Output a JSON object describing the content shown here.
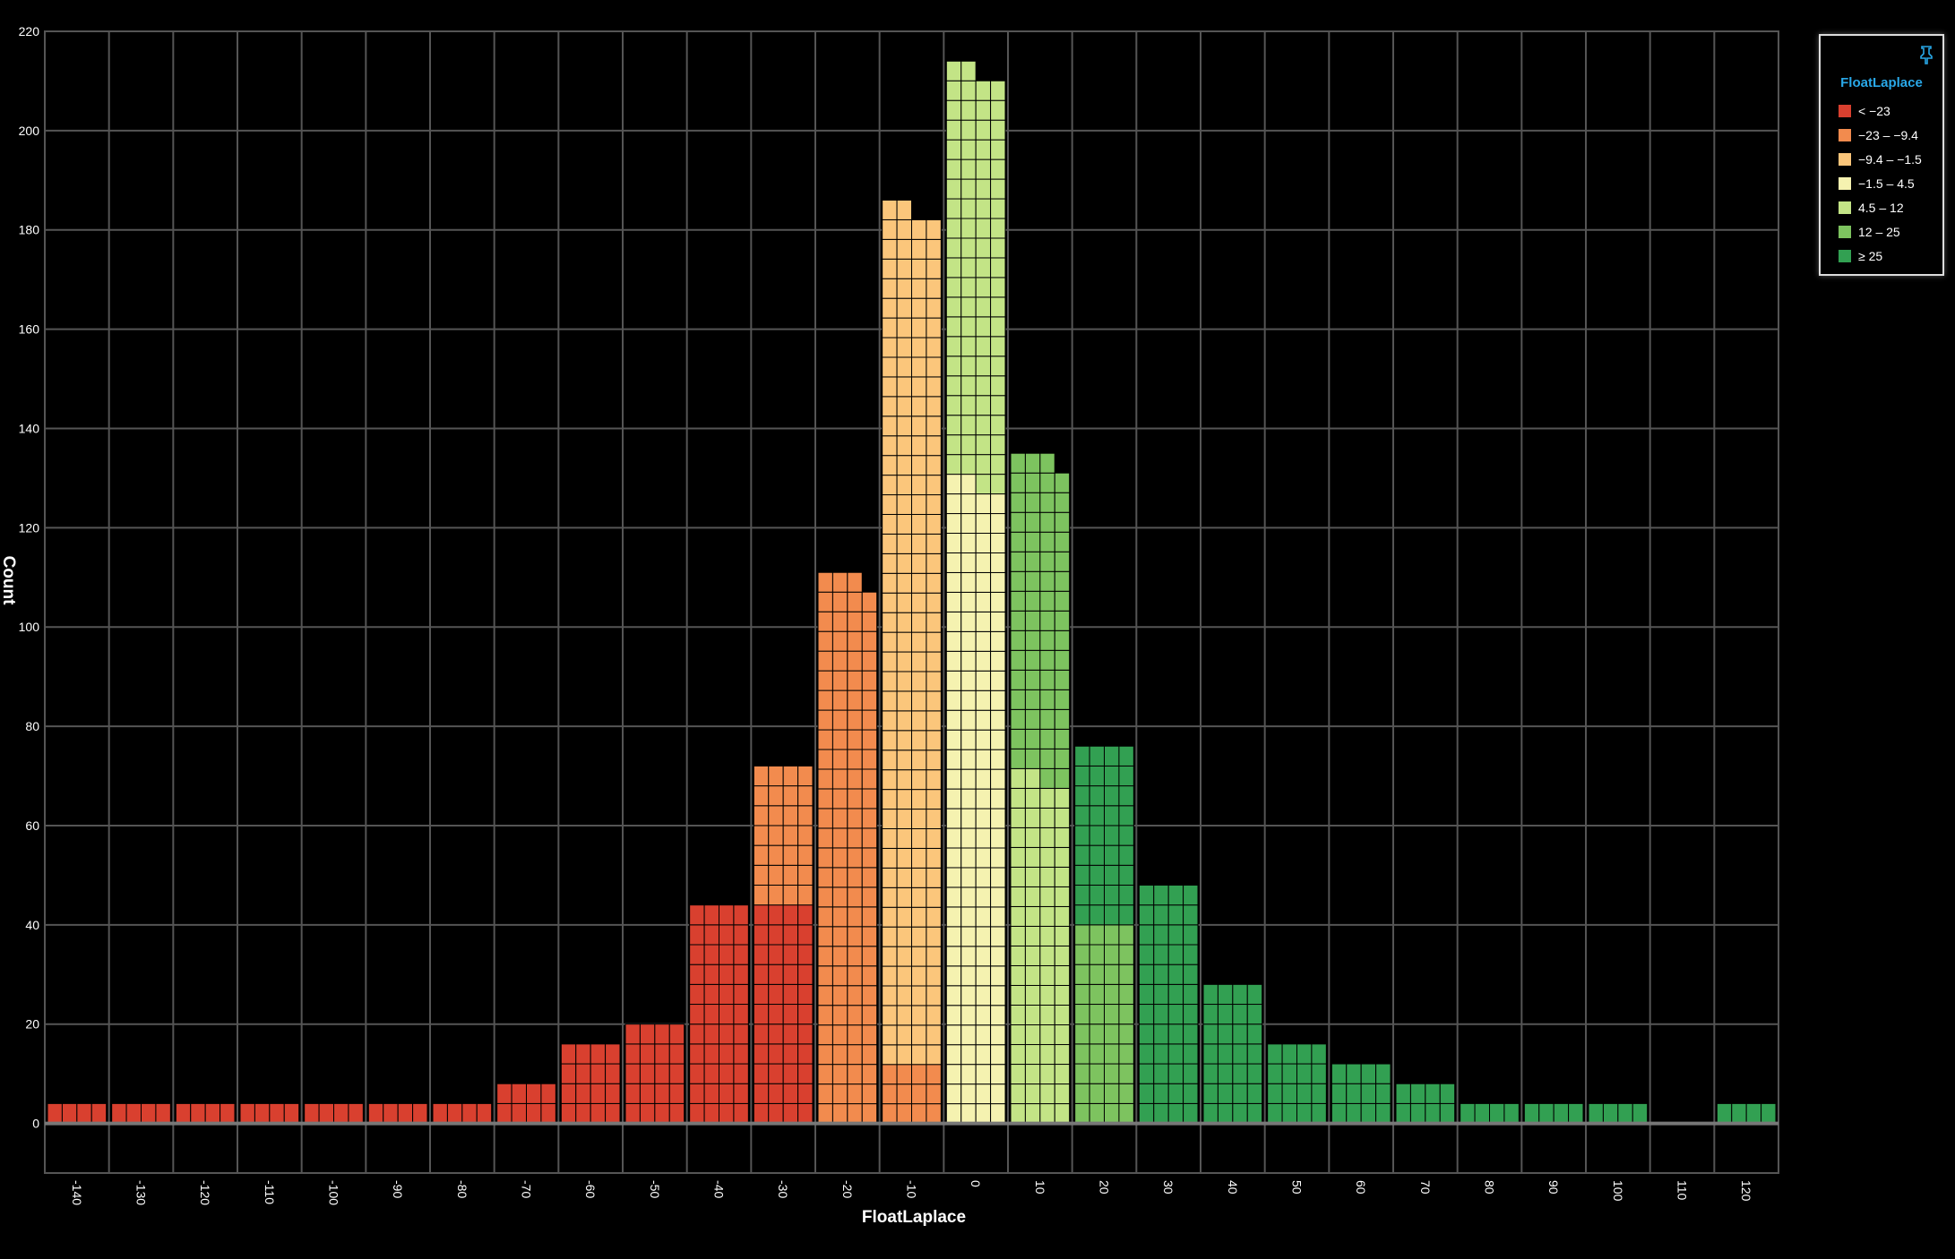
{
  "chart_data": {
    "type": "bar",
    "subtype": "unit-stacked histogram",
    "xlabel": "FloatLaplace",
    "ylabel": "Count",
    "ylim": [
      -10,
      220
    ],
    "y_ticks": [
      0,
      20,
      40,
      60,
      80,
      100,
      120,
      140,
      160,
      180,
      200,
      220
    ],
    "x_ticks": [
      -140,
      -130,
      -120,
      -110,
      -100,
      -90,
      -80,
      -70,
      -60,
      -50,
      -40,
      -30,
      -20,
      -10,
      0,
      10,
      20,
      30,
      40,
      50,
      60,
      70,
      80,
      90,
      100,
      110,
      120
    ],
    "bin_width": 10,
    "grid": true,
    "legend_position": "top-right",
    "legend_title": "FloatLaplace",
    "legend": [
      {
        "label": "< −23",
        "color": "#d9402f"
      },
      {
        "label": "−23 – −9.4",
        "color": "#f28b4e"
      },
      {
        "label": "−9.4 – −1.5",
        "color": "#fbc67b"
      },
      {
        "label": "−1.5 – 4.5",
        "color": "#f5f2b0"
      },
      {
        "label": "4.5 – 12",
        "color": "#c3e486"
      },
      {
        "label": "12 – 25",
        "color": "#7dc35f"
      },
      {
        "label": "≥ 25",
        "color": "#32a052"
      }
    ],
    "bins": [
      {
        "start": -140,
        "counts": [
          4,
          0,
          0,
          0,
          0,
          0,
          0
        ]
      },
      {
        "start": -130,
        "counts": [
          4,
          0,
          0,
          0,
          0,
          0,
          0
        ]
      },
      {
        "start": -120,
        "counts": [
          4,
          0,
          0,
          0,
          0,
          0,
          0
        ]
      },
      {
        "start": -110,
        "counts": [
          4,
          0,
          0,
          0,
          0,
          0,
          0
        ]
      },
      {
        "start": -100,
        "counts": [
          4,
          0,
          0,
          0,
          0,
          0,
          0
        ]
      },
      {
        "start": -90,
        "counts": [
          4,
          0,
          0,
          0,
          0,
          0,
          0
        ]
      },
      {
        "start": -80,
        "counts": [
          4,
          0,
          0,
          0,
          0,
          0,
          0
        ]
      },
      {
        "start": -70,
        "counts": [
          8,
          0,
          0,
          0,
          0,
          0,
          0
        ]
      },
      {
        "start": -60,
        "counts": [
          16,
          0,
          0,
          0,
          0,
          0,
          0
        ]
      },
      {
        "start": -50,
        "counts": [
          20,
          0,
          0,
          0,
          0,
          0,
          0
        ]
      },
      {
        "start": -40,
        "counts": [
          44,
          0,
          0,
          0,
          0,
          0,
          0
        ]
      },
      {
        "start": -30,
        "counts": [
          44,
          28,
          0,
          0,
          0,
          0,
          0
        ]
      },
      {
        "start": -20,
        "counts": [
          0,
          111,
          0,
          0,
          0,
          0,
          0
        ]
      },
      {
        "start": -10,
        "counts": [
          0,
          12,
          174,
          0,
          0,
          0,
          0
        ]
      },
      {
        "start": 0,
        "counts": [
          0,
          0,
          0,
          130,
          84,
          0,
          0
        ]
      },
      {
        "start": 10,
        "counts": [
          0,
          0,
          0,
          0,
          70,
          65,
          0
        ]
      },
      {
        "start": 20,
        "counts": [
          0,
          0,
          0,
          0,
          0,
          40,
          36
        ]
      },
      {
        "start": 30,
        "counts": [
          0,
          0,
          0,
          0,
          0,
          0,
          48
        ]
      },
      {
        "start": 40,
        "counts": [
          0,
          0,
          0,
          0,
          0,
          0,
          28
        ]
      },
      {
        "start": 50,
        "counts": [
          0,
          0,
          0,
          0,
          0,
          0,
          16
        ]
      },
      {
        "start": 60,
        "counts": [
          0,
          0,
          0,
          0,
          0,
          0,
          12
        ]
      },
      {
        "start": 70,
        "counts": [
          0,
          0,
          0,
          0,
          0,
          0,
          8
        ]
      },
      {
        "start": 80,
        "counts": [
          0,
          0,
          0,
          0,
          0,
          0,
          4
        ]
      },
      {
        "start": 90,
        "counts": [
          0,
          0,
          0,
          0,
          0,
          0,
          4
        ]
      },
      {
        "start": 100,
        "counts": [
          0,
          0,
          0,
          0,
          0,
          0,
          4
        ]
      },
      {
        "start": 110,
        "counts": [
          0,
          0,
          0,
          0,
          0,
          0,
          0
        ]
      },
      {
        "start": 120,
        "counts": [
          0,
          0,
          0,
          0,
          0,
          0,
          4
        ]
      }
    ]
  },
  "colors": {
    "background": "#000000",
    "grid": "#555555",
    "axis_text": "#ffffff",
    "legend_title": "#29a8e8",
    "pin_icon": "#29a8e8"
  },
  "icons": {
    "legend_pin": "pin-icon"
  }
}
